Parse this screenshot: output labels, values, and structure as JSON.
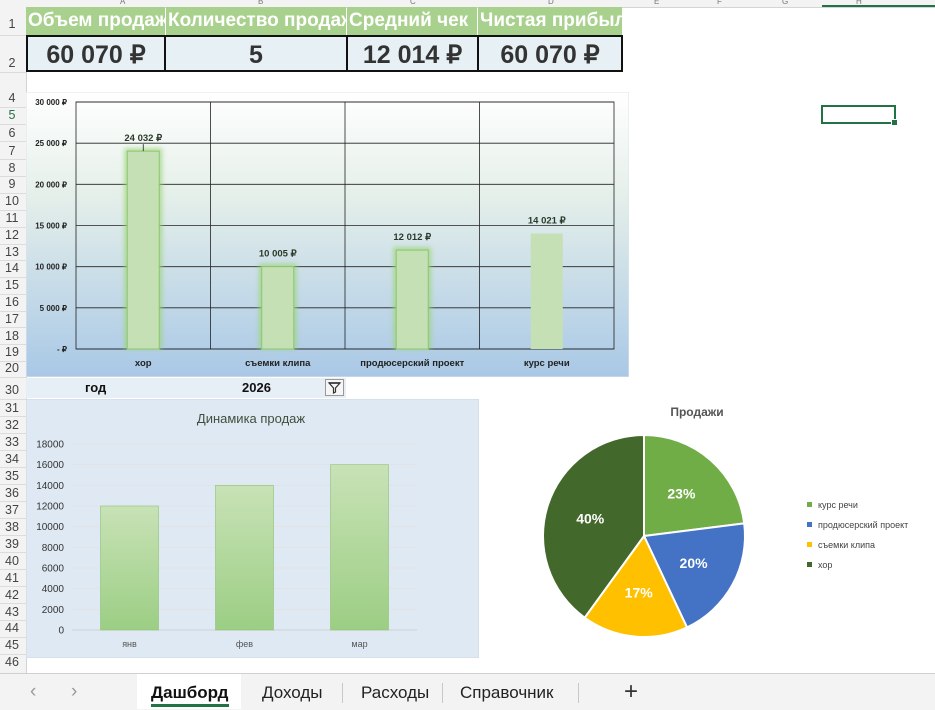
{
  "columns": [
    "A",
    "B",
    "C",
    "D",
    "E",
    "F",
    "G",
    "H"
  ],
  "rows": [
    "1",
    "2",
    "4",
    "5",
    "6",
    "7",
    "8",
    "9",
    "10",
    "11",
    "12",
    "13",
    "14",
    "15",
    "16",
    "17",
    "18",
    "19",
    "20",
    "30",
    "31",
    "32",
    "33",
    "34",
    "35",
    "36",
    "37",
    "38",
    "39",
    "40",
    "41",
    "42",
    "43",
    "44",
    "45",
    "46"
  ],
  "kpis": {
    "headers": [
      "Объем продаж",
      "Количество продаж",
      "Средний чек",
      "Чистая прибыль"
    ],
    "values": [
      "60 070 ₽",
      "5",
      "12 014 ₽",
      "60 070 ₽"
    ]
  },
  "filter": {
    "label": "год",
    "value": "2026"
  },
  "colors": {
    "accent": "#217346",
    "header_green": "#a9d18e",
    "bar_green": "#c5e0b4"
  },
  "chart_data": [
    {
      "type": "bar",
      "categories": [
        "хор",
        "съемки клипа",
        "продюсерский проект",
        "курс речи"
      ],
      "values": [
        24032,
        10005,
        12012,
        14021
      ],
      "data_labels": [
        "24 032 ₽",
        "10 005 ₽",
        "12 012 ₽",
        "14 021 ₽"
      ],
      "yticks": [
        "-   ₽",
        "5 000 ₽",
        "10 000 ₽",
        "15 000 ₽",
        "20 000 ₽",
        "25 000 ₽",
        "30 000 ₽"
      ],
      "ylim": [
        0,
        30000
      ],
      "grid": true
    },
    {
      "type": "bar",
      "title": "Динамика продаж",
      "categories": [
        "янв",
        "фев",
        "мар"
      ],
      "values": [
        12000,
        14000,
        16000
      ],
      "yticks": [
        "0",
        "2000",
        "4000",
        "6000",
        "8000",
        "10000",
        "12000",
        "14000",
        "16000",
        "18000"
      ],
      "ylim": [
        0,
        18000
      ],
      "grid": true
    },
    {
      "type": "pie",
      "title": "Продажи",
      "slices": [
        {
          "name": "курс речи",
          "value": 23,
          "label": "23%",
          "color": "#70ad47"
        },
        {
          "name": "продюсерский проект",
          "value": 20,
          "label": "20%",
          "color": "#4472c4"
        },
        {
          "name": "съемки клипа",
          "value": 17,
          "label": "17%",
          "color": "#ffc000"
        },
        {
          "name": "хор",
          "value": 40,
          "label": "40%",
          "color": "#43682b"
        }
      ],
      "legend_placement": "right"
    }
  ],
  "tabs": {
    "items": [
      "Дашборд",
      "Доходы",
      "Расходы",
      "Справочник"
    ],
    "add": "+",
    "prev": "‹",
    "next": "›"
  }
}
